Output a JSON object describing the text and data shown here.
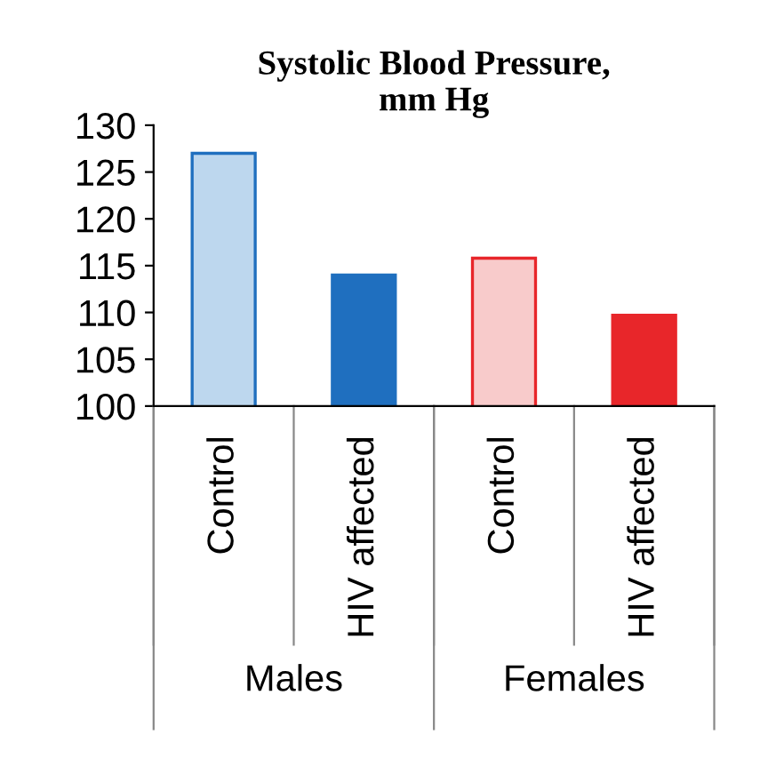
{
  "chart_data": {
    "type": "bar",
    "title": "Systolic Blood Pressure,\nmm Hg",
    "categories": [
      "Control",
      "HIV affected",
      "Control",
      "HIV affected"
    ],
    "values": [
      127,
      114,
      115.8,
      109.7
    ],
    "colors": [
      "#bdd7ee",
      "#1f6fbf",
      "#f8cbcb",
      "#e8262a"
    ],
    "ylim": [
      100,
      130
    ],
    "yticks": [
      100,
      105,
      110,
      115,
      120,
      125,
      130
    ],
    "grid": false,
    "annotations": [
      "Males",
      "Females"
    ]
  }
}
